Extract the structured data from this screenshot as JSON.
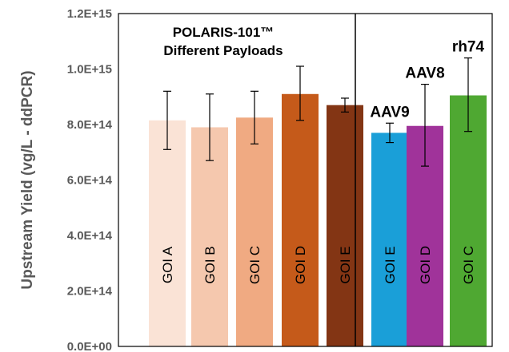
{
  "chart_data": {
    "type": "bar",
    "title": "",
    "ylabel": "Upstream Yield (vg/L - ddPCR)",
    "xlabel": "",
    "ylim": [
      0,
      1200000000000000.0
    ],
    "yticks": [
      {
        "value": 0,
        "label": "0.0E+00"
      },
      {
        "value": 200000000000000.0,
        "label": "2.0E+14"
      },
      {
        "value": 400000000000000.0,
        "label": "4.0E+14"
      },
      {
        "value": 600000000000000.0,
        "label": "6.0E+14"
      },
      {
        "value": 800000000000000.0,
        "label": "8.0E+14"
      },
      {
        "value": 1000000000000000.0,
        "label": "1.0E+15"
      },
      {
        "value": 1200000000000000.0,
        "label": "1.2E+15"
      }
    ],
    "grid": false,
    "bars": [
      {
        "category": "GOI A",
        "value": 815000000000000.0,
        "err_low": 710000000000000.0,
        "err_high": 920000000000000.0,
        "color": "#FAE3D6"
      },
      {
        "category": "GOI B",
        "value": 790000000000000.0,
        "err_low": 670000000000000.0,
        "err_high": 910000000000000.0,
        "color": "#F5C8AE"
      },
      {
        "category": "GOI C",
        "value": 825000000000000.0,
        "err_low": 730000000000000.0,
        "err_high": 920000000000000.0,
        "color": "#F0AA82"
      },
      {
        "category": "GOI D",
        "value": 910000000000000.0,
        "err_low": 815000000000000.0,
        "err_high": 1010000000000000.0,
        "color": "#C55A1A"
      },
      {
        "category": "GOI E",
        "value": 870000000000000.0,
        "err_low": 845000000000000.0,
        "err_high": 895000000000000.0,
        "color": "#833514"
      },
      {
        "category": "GOI E",
        "value": 770000000000000.0,
        "err_low": 735000000000000.0,
        "err_high": 805000000000000.0,
        "color": "#1A9FD8",
        "label": "AAV9"
      },
      {
        "category": "GOI D",
        "value": 795000000000000.0,
        "err_low": 650000000000000.0,
        "err_high": 945000000000000.0,
        "color": "#A0339A",
        "label": "AAV8"
      },
      {
        "category": "GOI C",
        "value": 905000000000000.0,
        "err_low": 775000000000000.0,
        "err_high": 1040000000000000.0,
        "color": "#4FA832",
        "label": "rh74"
      }
    ],
    "annotation": [
      "POLARIS-101™",
      "Different Payloads"
    ]
  }
}
